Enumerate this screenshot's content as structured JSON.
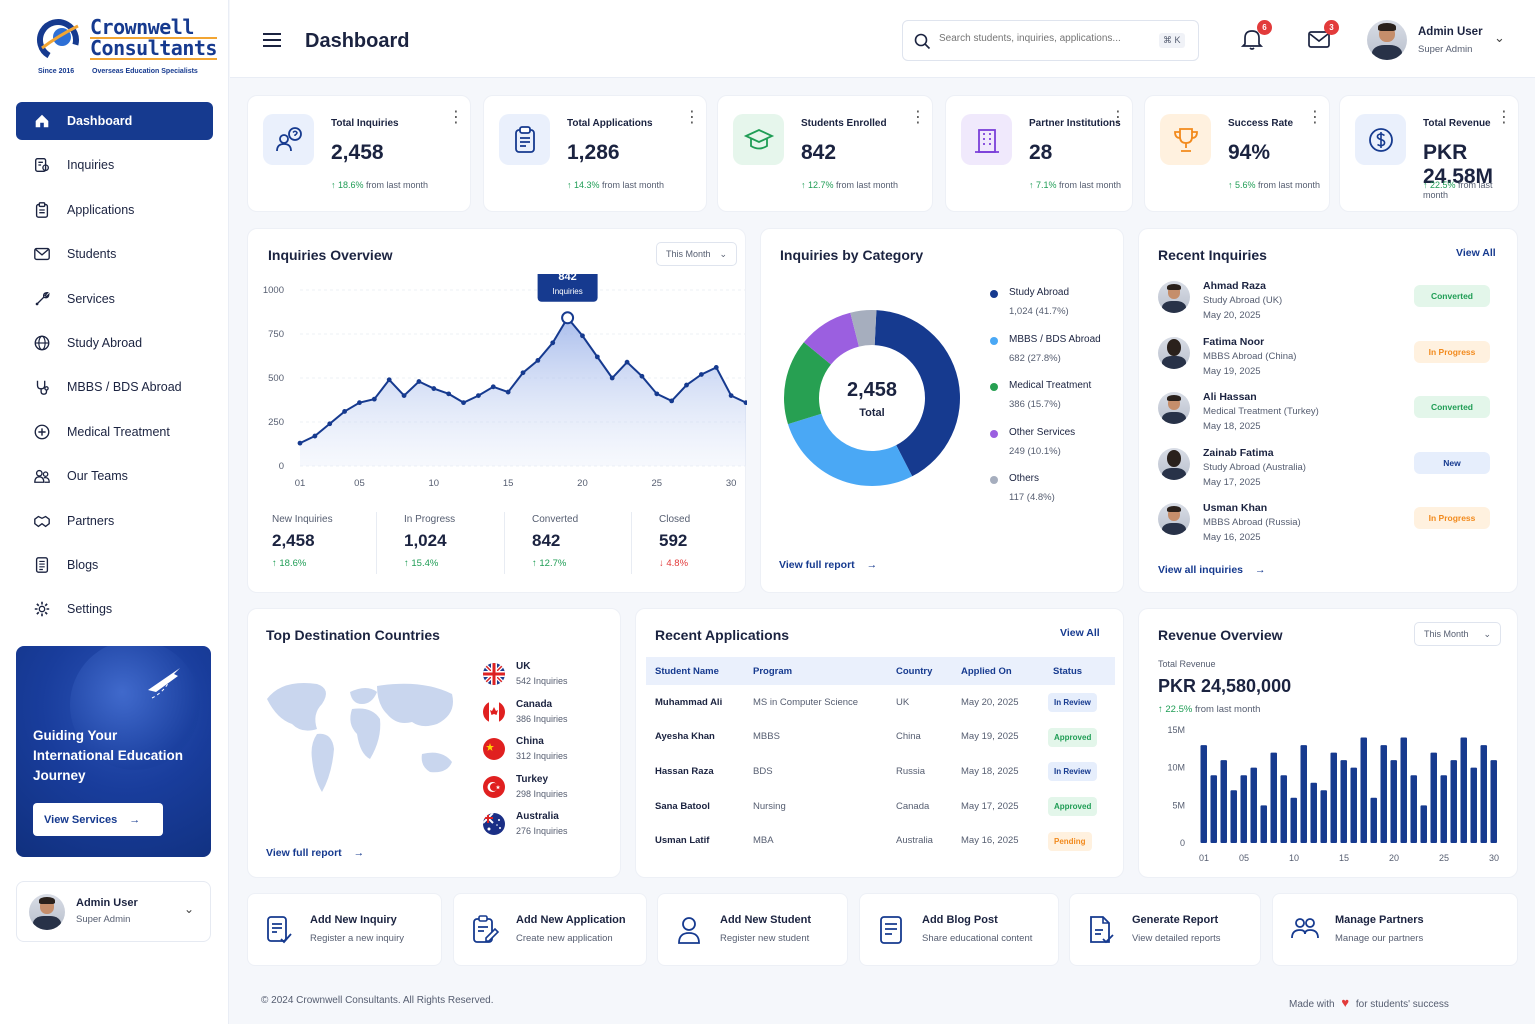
{
  "brand": {
    "name_line1": "Crownwell",
    "name_line2": "Consultants",
    "since": "Since 2016",
    "tagline": "Overseas Education Specialists"
  },
  "sidebar": {
    "items": [
      {
        "label": "Dashboard",
        "icon": "home-icon"
      },
      {
        "label": "Inquiries",
        "icon": "inquiries-icon"
      },
      {
        "label": "Applications",
        "icon": "clipboard-icon"
      },
      {
        "label": "Students",
        "icon": "mail-icon"
      },
      {
        "label": "Services",
        "icon": "tools-icon"
      },
      {
        "label": "Study Abroad",
        "icon": "globe-icon"
      },
      {
        "label": "MBBS / BDS Abroad",
        "icon": "stethoscope-icon"
      },
      {
        "label": "Medical Treatment",
        "icon": "medical-plus-icon"
      },
      {
        "label": "Our Teams",
        "icon": "team-icon"
      },
      {
        "label": "Partners",
        "icon": "handshake-icon"
      },
      {
        "label": "Blogs",
        "icon": "document-icon"
      },
      {
        "label": "Settings",
        "icon": "gear-icon"
      }
    ],
    "promo": {
      "title": "Guiding Your International Education Journey",
      "button": "View Services"
    },
    "user": {
      "name": "Admin User",
      "role": "Super Admin"
    }
  },
  "header": {
    "title": "Dashboard",
    "search_placeholder": "Search students, inquiries, applications...",
    "shortcut": "⌘ K",
    "notifications": "6",
    "messages": "3",
    "user": {
      "name": "Admin User",
      "role": "Super Admin"
    }
  },
  "stats": [
    {
      "label": "Total Inquiries",
      "value": "2,458",
      "change": "↑ 18.6%",
      "suffix": " from last month",
      "color": "#163a8f",
      "bg": "#eaf0fc",
      "icon": "question-user-icon"
    },
    {
      "label": "Total Applications",
      "value": "1,286",
      "change": "↑ 14.3%",
      "suffix": " from last month",
      "color": "#163a8f",
      "bg": "#eaf0fc",
      "icon": "clipboard-icon"
    },
    {
      "label": "Students Enrolled",
      "value": "842",
      "change": "↑ 12.7%",
      "suffix": " from last month",
      "color": "#1f9d55",
      "bg": "#e6f6ec",
      "icon": "graduation-cap-icon"
    },
    {
      "label": "Partner Institutions",
      "value": "28",
      "change": "↑ 7.1%",
      "suffix": " from last month",
      "color": "#7b3fd9",
      "bg": "#f0e9fc",
      "icon": "building-icon"
    },
    {
      "label": "Success Rate",
      "value": "94%",
      "change": "↑ 5.6%",
      "suffix": " from last month",
      "color": "#f28a1d",
      "bg": "#fff1df",
      "icon": "trophy-icon"
    },
    {
      "label": "Total Revenue",
      "value": "PKR 24.58M",
      "change": "↑ 22.5%",
      "suffix": " from last month",
      "color": "#163a8f",
      "bg": "#eaf0fc",
      "icon": "money-icon"
    }
  ],
  "inquiries_overview": {
    "title": "Inquiries Overview",
    "filter": "This Month",
    "tooltip": {
      "value": "842",
      "label": "Inquiries"
    },
    "summary": [
      {
        "label": "New Inquiries",
        "value": "2,458",
        "change": "↑ 18.6%",
        "dir": "up"
      },
      {
        "label": "In Progress",
        "value": "1,024",
        "change": "↑ 15.4%",
        "dir": "up"
      },
      {
        "label": "Converted",
        "value": "842",
        "change": "↑ 12.7%",
        "dir": "up"
      },
      {
        "label": "Closed",
        "value": "592",
        "change": "↓ 4.8%",
        "dir": "down"
      }
    ]
  },
  "chart_data": [
    {
      "type": "area",
      "x": [
        1,
        2,
        3,
        4,
        5,
        6,
        7,
        8,
        9,
        10,
        11,
        12,
        13,
        14,
        15,
        16,
        17,
        18,
        19,
        20,
        21,
        22,
        23,
        24,
        25,
        26,
        27,
        28,
        29,
        30,
        31
      ],
      "x_ticks": [
        "01",
        "05",
        "10",
        "15",
        "20",
        "25",
        "30"
      ],
      "y_ticks": [
        "0",
        "250",
        "500",
        "750",
        "1000"
      ],
      "values": [
        130,
        170,
        240,
        310,
        360,
        380,
        490,
        400,
        480,
        440,
        410,
        360,
        400,
        450,
        420,
        530,
        600,
        700,
        842,
        740,
        620,
        500,
        590,
        510,
        410,
        370,
        460,
        520,
        560,
        400,
        360
      ],
      "ylim": [
        0,
        1000
      ]
    },
    {
      "type": "pie",
      "title": "Inquiries by Category",
      "center_value": "2,458",
      "center_label": "Total",
      "slices": [
        {
          "name": "Study Abroad",
          "value": 1024,
          "detail": "1,024 (41.7%)",
          "color": "#163a8f"
        },
        {
          "name": "MBBS / BDS Abroad",
          "value": 682,
          "detail": "682 (27.8%)",
          "color": "#4aa8f5"
        },
        {
          "name": "Medical Treatment",
          "value": 386,
          "detail": "386 (15.7%)",
          "color": "#27a052"
        },
        {
          "name": "Other Services",
          "value": 249,
          "detail": "249 (10.1%)",
          "color": "#9b5fe0"
        },
        {
          "name": "Others",
          "value": 117,
          "detail": "117 (4.8%)",
          "color": "#a6aebe"
        }
      ]
    },
    {
      "type": "bar",
      "x": [
        1,
        2,
        3,
        4,
        5,
        6,
        7,
        8,
        9,
        10,
        11,
        12,
        13,
        14,
        15,
        16,
        17,
        18,
        19,
        20,
        21,
        22,
        23,
        24,
        25,
        26,
        27,
        28,
        29,
        30
      ],
      "x_ticks": [
        "01",
        "05",
        "10",
        "15",
        "20",
        "25",
        "30"
      ],
      "y_ticks": [
        "0",
        "5M",
        "10M",
        "15M"
      ],
      "values": [
        13,
        9,
        11,
        7,
        9,
        10,
        5,
        12,
        9,
        6,
        13,
        8,
        7,
        12,
        11,
        10,
        14,
        6,
        13,
        11,
        14,
        9,
        5,
        12,
        9,
        11,
        14,
        10,
        13,
        11
      ],
      "ylim": [
        0,
        15
      ]
    }
  ],
  "categories_card": {
    "title": "Inquiries by Category",
    "link": "View full report"
  },
  "recent_inquiries": {
    "title": "Recent Inquiries",
    "view_all": "View All",
    "link": "View all inquiries",
    "items": [
      {
        "name": "Ahmad Raza",
        "program": "Study Abroad (UK)",
        "date": "May 20, 2025",
        "status": "Converted",
        "tone": "green",
        "gender": "m"
      },
      {
        "name": "Fatima Noor",
        "program": "MBBS Abroad (China)",
        "date": "May 19, 2025",
        "status": "In Progress",
        "tone": "orange",
        "gender": "f"
      },
      {
        "name": "Ali Hassan",
        "program": "Medical Treatment (Turkey)",
        "date": "May 18, 2025",
        "status": "Converted",
        "tone": "green",
        "gender": "m"
      },
      {
        "name": "Zainab Fatima",
        "program": "Study Abroad (Australia)",
        "date": "May 17, 2025",
        "status": "New",
        "tone": "blue",
        "gender": "f"
      },
      {
        "name": "Usman Khan",
        "program": "MBBS Abroad (Russia)",
        "date": "May 16, 2025",
        "status": "In Progress",
        "tone": "orange",
        "gender": "m"
      }
    ]
  },
  "destinations": {
    "title": "Top Destination Countries",
    "link": "View full report",
    "items": [
      {
        "country": "UK",
        "count": "542 Inquiries",
        "flag": "uk-flag-icon"
      },
      {
        "country": "Canada",
        "count": "386 Inquiries",
        "flag": "canada-flag-icon"
      },
      {
        "country": "China",
        "count": "312 Inquiries",
        "flag": "china-flag-icon"
      },
      {
        "country": "Turkey",
        "count": "298 Inquiries",
        "flag": "turkey-flag-icon"
      },
      {
        "country": "Australia",
        "count": "276 Inquiries",
        "flag": "australia-flag-icon"
      }
    ]
  },
  "recent_applications": {
    "title": "Recent Applications",
    "view_all": "View All",
    "columns": [
      "Student Name",
      "Program",
      "Country",
      "Applied On",
      "Status"
    ],
    "rows": [
      {
        "name": "Muhammad Ali",
        "program": "MS in Computer Science",
        "country": "UK",
        "date": "May 20, 2025",
        "status": "In Review",
        "tone": "blue"
      },
      {
        "name": "Ayesha Khan",
        "program": "MBBS",
        "country": "China",
        "date": "May 19, 2025",
        "status": "Approved",
        "tone": "green"
      },
      {
        "name": "Hassan Raza",
        "program": "BDS",
        "country": "Russia",
        "date": "May 18, 2025",
        "status": "In Review",
        "tone": "blue"
      },
      {
        "name": "Sana Batool",
        "program": "Nursing",
        "country": "Canada",
        "date": "May 17, 2025",
        "status": "Approved",
        "tone": "green"
      },
      {
        "name": "Usman Latif",
        "program": "MBA",
        "country": "Australia",
        "date": "May 16, 2025",
        "status": "Pending",
        "tone": "orange"
      }
    ]
  },
  "revenue": {
    "title": "Revenue Overview",
    "filter": "This Month",
    "label": "Total Revenue",
    "value": "PKR 24,580,000",
    "change": "↑ 22.5%",
    "suffix": " from last month"
  },
  "quick_actions": [
    {
      "title": "Add New Inquiry",
      "subtitle": "Register a new inquiry",
      "icon": "new-inquiry-icon"
    },
    {
      "title": "Add New Application",
      "subtitle": "Create new application",
      "icon": "new-application-icon"
    },
    {
      "title": "Add New Student",
      "subtitle": "Register new student",
      "icon": "new-student-icon"
    },
    {
      "title": "Add Blog Post",
      "subtitle": "Share educational content",
      "icon": "blog-post-icon"
    },
    {
      "title": "Generate Report",
      "subtitle": "View detailed reports",
      "icon": "report-icon"
    },
    {
      "title": "Manage Partners",
      "subtitle": "Manage our partners",
      "icon": "partners-icon"
    }
  ],
  "footer": {
    "copyright": "© 2024 Crownwell Consultants. All Rights Reserved.",
    "made_with": "Made with",
    "made_for": "for students' success"
  }
}
